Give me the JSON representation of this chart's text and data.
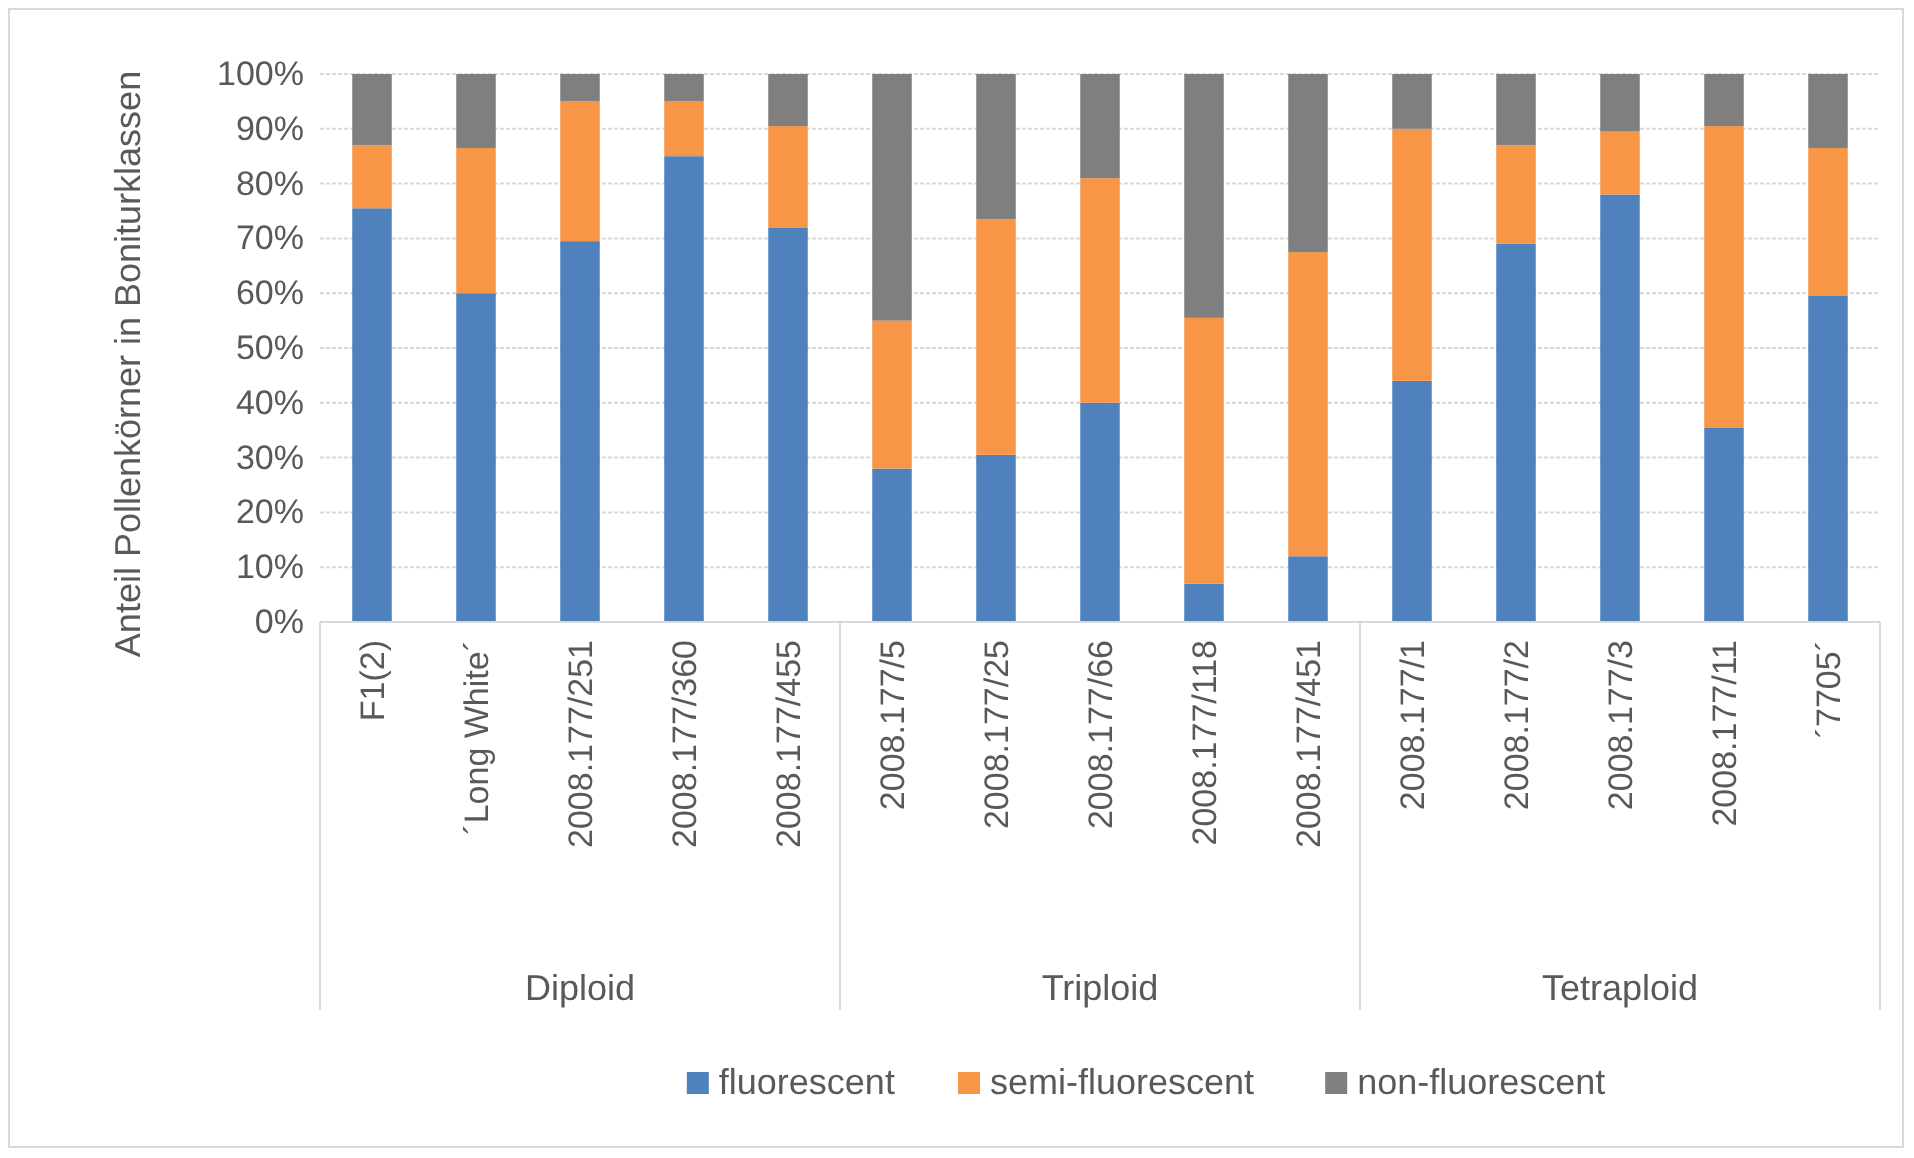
{
  "chart_data": {
    "type": "bar",
    "stacked": true,
    "ylabel": "Anteil Pollenkörner in Boniturklassen",
    "categories": [
      "F1(2)",
      "´Long White´",
      "2008.177/251",
      "2008.177/360",
      "2008.177/455",
      "2008.177/5",
      "2008.177/25",
      "2008.177/66",
      "2008.177/118",
      "2008.177/451",
      "2008.177/1",
      "2008.177/2",
      "2008.177/3",
      "2008.177/11",
      "´7705´"
    ],
    "series": [
      {
        "name": "fluorescent",
        "color": "#4f81bd",
        "values": [
          75.5,
          60,
          69.5,
          85,
          72,
          28,
          30.5,
          40,
          7,
          12,
          44,
          69,
          78,
          35.5,
          59.5
        ]
      },
      {
        "name": "semi-fluorescent",
        "color": "#f79646",
        "values": [
          11.5,
          26.5,
          25.5,
          10,
          18.5,
          27,
          43,
          41,
          48.5,
          55.5,
          46,
          18,
          11.5,
          55,
          27
        ]
      },
      {
        "name": "non-fluorescent",
        "color": "#7f7f7f",
        "values": [
          13,
          13.5,
          5,
          5,
          9.5,
          45,
          26.5,
          19,
          44.5,
          32.5,
          10,
          13,
          10.5,
          9.5,
          13.5
        ]
      }
    ],
    "annotations": [
      "Diploid",
      "Triploid",
      "Tetraploid"
    ],
    "ylim": [
      0,
      100
    ],
    "yticks": [
      {
        "value": 0,
        "label": "0%"
      },
      {
        "value": 10,
        "label": "10%"
      },
      {
        "value": 20,
        "label": "20%"
      },
      {
        "value": 30,
        "label": "30%"
      },
      {
        "value": 40,
        "label": "40%"
      },
      {
        "value": 50,
        "label": "50%"
      },
      {
        "value": 60,
        "label": "60%"
      },
      {
        "value": 70,
        "label": "70%"
      },
      {
        "value": 80,
        "label": "80%"
      },
      {
        "value": 90,
        "label": "90%"
      },
      {
        "value": 100,
        "label": "100%"
      }
    ],
    "grid": "y",
    "legend": "bottom"
  }
}
